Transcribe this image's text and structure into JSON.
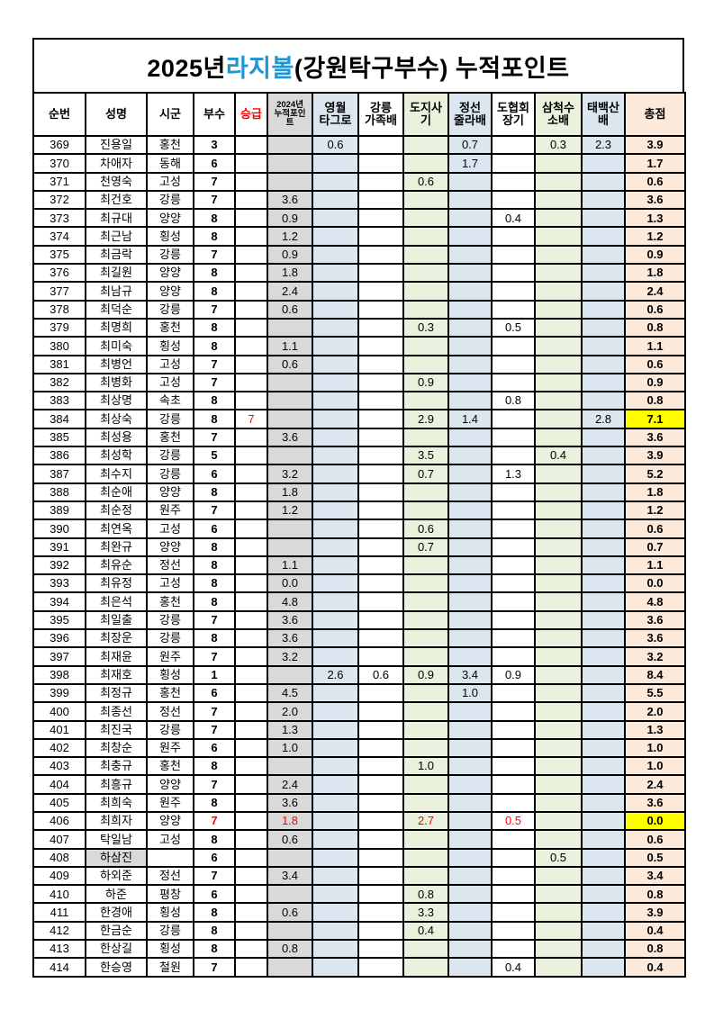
{
  "title": {
    "prefix": "2025년 ",
    "highlight": "라지볼",
    "suffix": " (강원탁구부수) 누적포인트"
  },
  "colors": {
    "title_highlight_blue": "#1f95d4",
    "promotion_red": "#ff0000",
    "column_gray": "#d9d9d9",
    "column_blue": "#dce6f1",
    "column_green": "#eaf1dd",
    "total_column_tan": "#fde9d9",
    "highlight_yellow": "#ffff00"
  },
  "columns": [
    {
      "id": "no",
      "label": "순번",
      "cls": ""
    },
    {
      "id": "name",
      "label": "성명",
      "cls": ""
    },
    {
      "id": "city",
      "label": "시군",
      "cls": ""
    },
    {
      "id": "grade",
      "label": "부수",
      "cls": "c-grade"
    },
    {
      "id": "promo",
      "label": "승급",
      "cls": "",
      "header_red": true
    },
    {
      "id": "p2024",
      "label": "2024년\n누적포인\n트",
      "cls": "c-2024"
    },
    {
      "id": "yeongwol",
      "label": "영월\n타그로",
      "cls": "c-blue"
    },
    {
      "id": "gangneung",
      "label": "강릉\n가족배",
      "cls": ""
    },
    {
      "id": "dojisa",
      "label": "도지사\n기",
      "cls": "c-green"
    },
    {
      "id": "jeongseon",
      "label": "정선\n줄라배",
      "cls": "c-blue"
    },
    {
      "id": "dohyeophoe",
      "label": "도협회\n장기",
      "cls": ""
    },
    {
      "id": "samcheok",
      "label": "삼척수\n소배",
      "cls": "c-green"
    },
    {
      "id": "taebaek",
      "label": "태백산\n배",
      "cls": "c-blue"
    },
    {
      "id": "total",
      "label": "총점",
      "cls": "c-total"
    }
  ],
  "rows": [
    {
      "c": [
        "369",
        "진용일",
        "홍천",
        "3",
        "",
        "",
        "0.6",
        "",
        "",
        "0.7",
        "",
        "0.3",
        "2.3",
        "3.9"
      ]
    },
    {
      "c": [
        "370",
        "차애자",
        "동해",
        "6",
        "",
        "",
        "",
        "",
        "",
        "1.7",
        "",
        "",
        "",
        "1.7"
      ]
    },
    {
      "c": [
        "371",
        "천영숙",
        "고성",
        "7",
        "",
        "",
        "",
        "",
        "0.6",
        "",
        "",
        "",
        "",
        "0.6"
      ]
    },
    {
      "c": [
        "372",
        "최건호",
        "강릉",
        "7",
        "",
        "3.6",
        "",
        "",
        "",
        "",
        "",
        "",
        "",
        "3.6"
      ]
    },
    {
      "c": [
        "373",
        "최규대",
        "양양",
        "8",
        "",
        "0.9",
        "",
        "",
        "",
        "",
        "0.4",
        "",
        "",
        "1.3"
      ]
    },
    {
      "c": [
        "374",
        "최근남",
        "횡성",
        "8",
        "",
        "1.2",
        "",
        "",
        "",
        "",
        "",
        "",
        "",
        "1.2"
      ]
    },
    {
      "c": [
        "375",
        "최금락",
        "강릉",
        "7",
        "",
        "0.9",
        "",
        "",
        "",
        "",
        "",
        "",
        "",
        "0.9"
      ]
    },
    {
      "c": [
        "376",
        "최길원",
        "양양",
        "8",
        "",
        "1.8",
        "",
        "",
        "",
        "",
        "",
        "",
        "",
        "1.8"
      ]
    },
    {
      "c": [
        "377",
        "최남규",
        "양양",
        "8",
        "",
        "2.4",
        "",
        "",
        "",
        "",
        "",
        "",
        "",
        "2.4"
      ]
    },
    {
      "c": [
        "378",
        "최덕순",
        "강릉",
        "7",
        "",
        "0.6",
        "",
        "",
        "",
        "",
        "",
        "",
        "",
        "0.6"
      ]
    },
    {
      "c": [
        "379",
        "최명희",
        "홍천",
        "8",
        "",
        "",
        "",
        "",
        "0.3",
        "",
        "0.5",
        "",
        "",
        "0.8"
      ]
    },
    {
      "c": [
        "380",
        "최미숙",
        "횡성",
        "8",
        "",
        "1.1",
        "",
        "",
        "",
        "",
        "",
        "",
        "",
        "1.1"
      ]
    },
    {
      "c": [
        "381",
        "최병언",
        "고성",
        "7",
        "",
        "0.6",
        "",
        "",
        "",
        "",
        "",
        "",
        "",
        "0.6"
      ]
    },
    {
      "c": [
        "382",
        "최병화",
        "고성",
        "7",
        "",
        "",
        "",
        "",
        "0.9",
        "",
        "",
        "",
        "",
        "0.9"
      ]
    },
    {
      "c": [
        "383",
        "최상명",
        "속초",
        "8",
        "",
        "",
        "",
        "",
        "",
        "",
        "0.8",
        "",
        "",
        "0.8"
      ]
    },
    {
      "c": [
        "384",
        "최상숙",
        "강릉",
        "8",
        "7",
        "",
        "",
        "",
        "2.9",
        "1.4",
        "",
        "",
        "2.8",
        "7.1"
      ],
      "red": [
        4
      ],
      "hl": true
    },
    {
      "c": [
        "385",
        "최성용",
        "홍천",
        "7",
        "",
        "3.6",
        "",
        "",
        "",
        "",
        "",
        "",
        "",
        "3.6"
      ]
    },
    {
      "c": [
        "386",
        "최성학",
        "강릉",
        "5",
        "",
        "",
        "",
        "",
        "3.5",
        "",
        "",
        "0.4",
        "",
        "3.9"
      ]
    },
    {
      "c": [
        "387",
        "최수지",
        "강릉",
        "6",
        "",
        "3.2",
        "",
        "",
        "0.7",
        "",
        "1.3",
        "",
        "",
        "5.2"
      ]
    },
    {
      "c": [
        "388",
        "최순애",
        "양양",
        "8",
        "",
        "1.8",
        "",
        "",
        "",
        "",
        "",
        "",
        "",
        "1.8"
      ]
    },
    {
      "c": [
        "389",
        "최순정",
        "원주",
        "7",
        "",
        "1.2",
        "",
        "",
        "",
        "",
        "",
        "",
        "",
        "1.2"
      ]
    },
    {
      "c": [
        "390",
        "최연옥",
        "고성",
        "6",
        "",
        "",
        "",
        "",
        "0.6",
        "",
        "",
        "",
        "",
        "0.6"
      ]
    },
    {
      "c": [
        "391",
        "최완규",
        "양양",
        "8",
        "",
        "",
        "",
        "",
        "0.7",
        "",
        "",
        "",
        "",
        "0.7"
      ]
    },
    {
      "c": [
        "392",
        "최유순",
        "정선",
        "8",
        "",
        "1.1",
        "",
        "",
        "",
        "",
        "",
        "",
        "",
        "1.1"
      ]
    },
    {
      "c": [
        "393",
        "최유정",
        "고성",
        "8",
        "",
        "0.0",
        "",
        "",
        "",
        "",
        "",
        "",
        "",
        "0.0"
      ]
    },
    {
      "c": [
        "394",
        "최은석",
        "홍천",
        "8",
        "",
        "4.8",
        "",
        "",
        "",
        "",
        "",
        "",
        "",
        "4.8"
      ]
    },
    {
      "c": [
        "395",
        "최일출",
        "강릉",
        "7",
        "",
        "3.6",
        "",
        "",
        "",
        "",
        "",
        "",
        "",
        "3.6"
      ]
    },
    {
      "c": [
        "396",
        "최장운",
        "강릉",
        "8",
        "",
        "3.6",
        "",
        "",
        "",
        "",
        "",
        "",
        "",
        "3.6"
      ]
    },
    {
      "c": [
        "397",
        "최재윤",
        "원주",
        "7",
        "",
        "3.2",
        "",
        "",
        "",
        "",
        "",
        "",
        "",
        "3.2"
      ]
    },
    {
      "c": [
        "398",
        "최재호",
        "횡성",
        "1",
        "",
        "",
        "2.6",
        "0.6",
        "0.9",
        "3.4",
        "0.9",
        "",
        "",
        "8.4"
      ]
    },
    {
      "c": [
        "399",
        "최정규",
        "홍천",
        "6",
        "",
        "4.5",
        "",
        "",
        "",
        "1.0",
        "",
        "",
        "",
        "5.5"
      ]
    },
    {
      "c": [
        "400",
        "최종선",
        "정선",
        "7",
        "",
        "2.0",
        "",
        "",
        "",
        "",
        "",
        "",
        "",
        "2.0"
      ]
    },
    {
      "c": [
        "401",
        "최진국",
        "강릉",
        "7",
        "",
        "1.3",
        "",
        "",
        "",
        "",
        "",
        "",
        "",
        "1.3"
      ]
    },
    {
      "c": [
        "402",
        "최창순",
        "원주",
        "6",
        "",
        "1.0",
        "",
        "",
        "",
        "",
        "",
        "",
        "",
        "1.0"
      ]
    },
    {
      "c": [
        "403",
        "최충규",
        "홍천",
        "8",
        "",
        "",
        "",
        "",
        "1.0",
        "",
        "",
        "",
        "",
        "1.0"
      ]
    },
    {
      "c": [
        "404",
        "최흥규",
        "양양",
        "7",
        "",
        "2.4",
        "",
        "",
        "",
        "",
        "",
        "",
        "",
        "2.4"
      ]
    },
    {
      "c": [
        "405",
        "최희숙",
        "원주",
        "8",
        "",
        "3.6",
        "",
        "",
        "",
        "",
        "",
        "",
        "",
        "3.6"
      ]
    },
    {
      "c": [
        "406",
        "최희자",
        "양양",
        "7",
        "",
        "1.8",
        "",
        "",
        "2.7",
        "",
        "0.5",
        "",
        "",
        "0.0"
      ],
      "red": [
        3,
        5,
        8,
        10
      ],
      "hl": true
    },
    {
      "c": [
        "407",
        "탁일남",
        "고성",
        "8",
        "",
        "0.6",
        "",
        "",
        "",
        "",
        "",
        "",
        "",
        "0.6"
      ]
    },
    {
      "c": [
        "408",
        "하삼진",
        "",
        "6",
        "",
        "",
        "",
        "",
        "",
        "",
        "",
        "0.5",
        "",
        "0.5"
      ],
      "grayName": true
    },
    {
      "c": [
        "409",
        "하외준",
        "정선",
        "7",
        "",
        "3.4",
        "",
        "",
        "",
        "",
        "",
        "",
        "",
        "3.4"
      ]
    },
    {
      "c": [
        "410",
        "하준",
        "평창",
        "6",
        "",
        "",
        "",
        "",
        "0.8",
        "",
        "",
        "",
        "",
        "0.8"
      ]
    },
    {
      "c": [
        "411",
        "한경애",
        "횡성",
        "8",
        "",
        "0.6",
        "",
        "",
        "3.3",
        "",
        "",
        "",
        "",
        "3.9"
      ]
    },
    {
      "c": [
        "412",
        "한금순",
        "강릉",
        "8",
        "",
        "",
        "",
        "",
        "0.4",
        "",
        "",
        "",
        "",
        "0.4"
      ]
    },
    {
      "c": [
        "413",
        "한상길",
        "횡성",
        "8",
        "",
        "0.8",
        "",
        "",
        "",
        "",
        "",
        "",
        "",
        "0.8"
      ]
    },
    {
      "c": [
        "414",
        "한승영",
        "철원",
        "7",
        "",
        "",
        "",
        "",
        "",
        "",
        "0.4",
        "",
        "",
        "0.4"
      ]
    }
  ]
}
